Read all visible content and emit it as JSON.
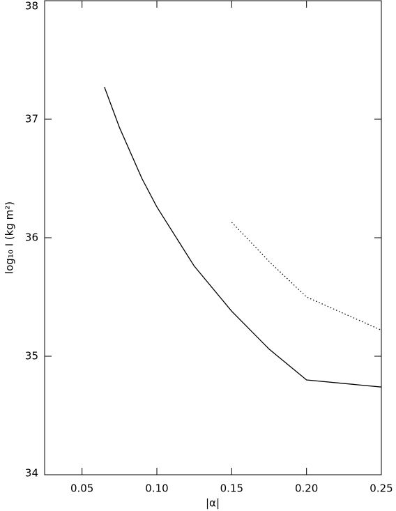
{
  "chart_data": {
    "type": "line",
    "x_label": "|α|",
    "y_label": "log₁₀ I (kg m²)",
    "xlim": [
      0.025,
      0.25
    ],
    "ylim": [
      34,
      38
    ],
    "xticks": [
      {
        "value": 0.05,
        "label": "0.05"
      },
      {
        "value": 0.1,
        "label": "0.10"
      },
      {
        "value": 0.15,
        "label": "0.15"
      },
      {
        "value": 0.2,
        "label": "0.20"
      },
      {
        "value": 0.25,
        "label": "0.25"
      }
    ],
    "yticks": [
      34,
      35,
      36,
      37,
      38
    ],
    "series": [
      {
        "color": "#000000",
        "linestyle": "solid",
        "x": [
          0.065,
          0.075,
          0.09,
          0.1,
          0.125,
          0.15,
          0.175,
          0.2,
          0.25
        ],
        "values": [
          37.27,
          36.93,
          36.5,
          36.26,
          35.76,
          35.38,
          35.06,
          34.8,
          34.74
        ]
      },
      {
        "color": "#000000",
        "linestyle": "dotted",
        "x": [
          0.15,
          0.175,
          0.2,
          0.25
        ],
        "values": [
          36.13,
          35.8,
          35.5,
          35.22
        ]
      }
    ]
  }
}
